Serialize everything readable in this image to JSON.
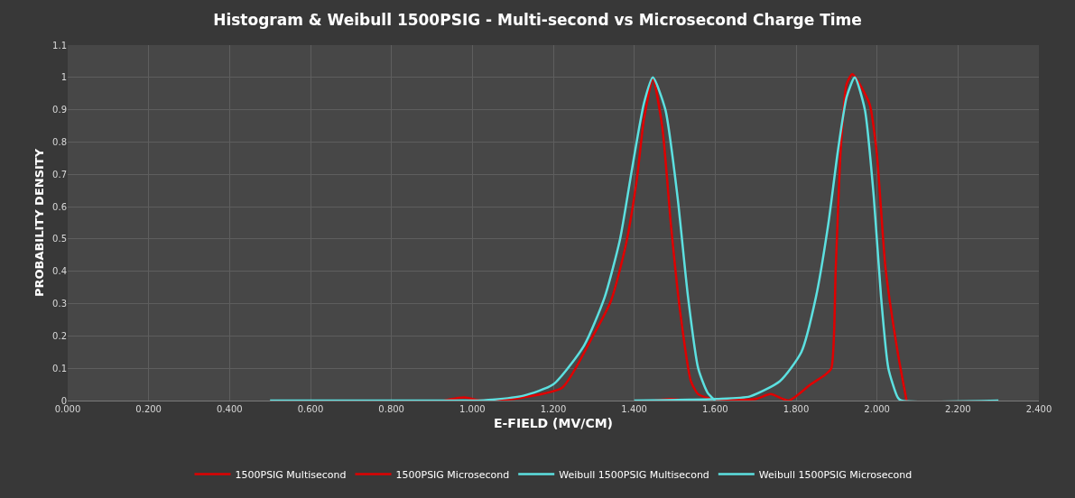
{
  "chart_data": {
    "type": "line",
    "title": "Histogram & Weibull 1500PSIG - Multi-second vs Microsecond Charge Time",
    "xlabel": "E-FIELD (MV/CM)",
    "ylabel": "PROBABILITY DENSITY",
    "xlim": [
      0,
      2.4
    ],
    "ylim": [
      0,
      1.1
    ],
    "xticks": [
      {
        "value": 0,
        "label": "0.000"
      },
      {
        "value": 0.2,
        "label": "0.200"
      },
      {
        "value": 0.4,
        "label": "0.400"
      },
      {
        "value": 0.6,
        "label": "0.600"
      },
      {
        "value": 0.8,
        "label": "0.800"
      },
      {
        "value": 1.0,
        "label": "1.000"
      },
      {
        "value": 1.2,
        "label": "1.200"
      },
      {
        "value": 1.4,
        "label": "1.400"
      },
      {
        "value": 1.6,
        "label": "1.600"
      },
      {
        "value": 1.8,
        "label": "1.800"
      },
      {
        "value": 2.0,
        "label": "2.000"
      },
      {
        "value": 2.2,
        "label": "2.200"
      },
      {
        "value": 2.4,
        "label": "2.400"
      }
    ],
    "yticks": [
      0,
      0.1,
      0.2,
      0.3,
      0.4,
      0.5,
      0.6,
      0.7,
      0.8,
      0.9,
      1,
      1.1
    ],
    "grid": true,
    "legend": "bottom",
    "marker": "none",
    "line_style": "solid",
    "series": [
      {
        "name": "1500PSIG Multisecond",
        "color": "#e00000",
        "x": [
          0.93,
          0.98,
          1.02,
          1.1,
          1.126,
          1.222,
          1.298,
          1.343,
          1.379,
          1.406,
          1.424,
          1.446,
          1.469,
          1.491,
          1.513,
          1.54,
          1.558,
          1.589,
          1.6
        ],
        "values": [
          0,
          0.01,
          0,
          0.005,
          0.01,
          0.04,
          0.2,
          0.31,
          0.48,
          0.68,
          0.87,
          0.995,
          0.85,
          0.54,
          0.28,
          0.06,
          0.02,
          0.005,
          0
        ]
      },
      {
        "name": "1500PSIG Microsecond",
        "color": "#e00000",
        "x": [
          1.45,
          1.49,
          1.53,
          1.574,
          1.7,
          1.737,
          1.782,
          1.836,
          1.872,
          1.887,
          1.898,
          1.91,
          1.925,
          1.939,
          1.981,
          1.999,
          2.021,
          2.051,
          2.073
        ],
        "values": [
          0,
          0.005,
          0,
          0,
          0.005,
          0.02,
          0,
          0.05,
          0.08,
          0.1,
          0.41,
          0.77,
          0.98,
          1.01,
          0.92,
          0.77,
          0.41,
          0.15,
          0
        ]
      },
      {
        "name": "Weibull 1500PSIG Multisecond",
        "color": "#5ce0e0",
        "x": [
          0.5,
          0.8,
          1.0,
          1.05,
          1.126,
          1.2,
          1.276,
          1.327,
          1.365,
          1.395,
          1.424,
          1.446,
          1.477,
          1.507,
          1.533,
          1.558,
          1.581,
          1.6
        ],
        "values": [
          0,
          0,
          0,
          0.003,
          0.015,
          0.05,
          0.17,
          0.32,
          0.5,
          0.72,
          0.92,
          1.0,
          0.9,
          0.63,
          0.32,
          0.1,
          0.025,
          0
        ]
      },
      {
        "name": "Weibull 1500PSIG Microsecond",
        "color": "#5ce0e0",
        "x": [
          1.4,
          1.603,
          1.686,
          1.76,
          1.813,
          1.849,
          1.88,
          1.903,
          1.925,
          1.945,
          1.97,
          1.992,
          2.01,
          2.028,
          2.051,
          2.06,
          2.3
        ],
        "values": [
          0,
          0.005,
          0.013,
          0.06,
          0.15,
          0.32,
          0.55,
          0.77,
          0.94,
          1.0,
          0.9,
          0.63,
          0.32,
          0.1,
          0.01,
          0,
          0
        ]
      }
    ]
  }
}
